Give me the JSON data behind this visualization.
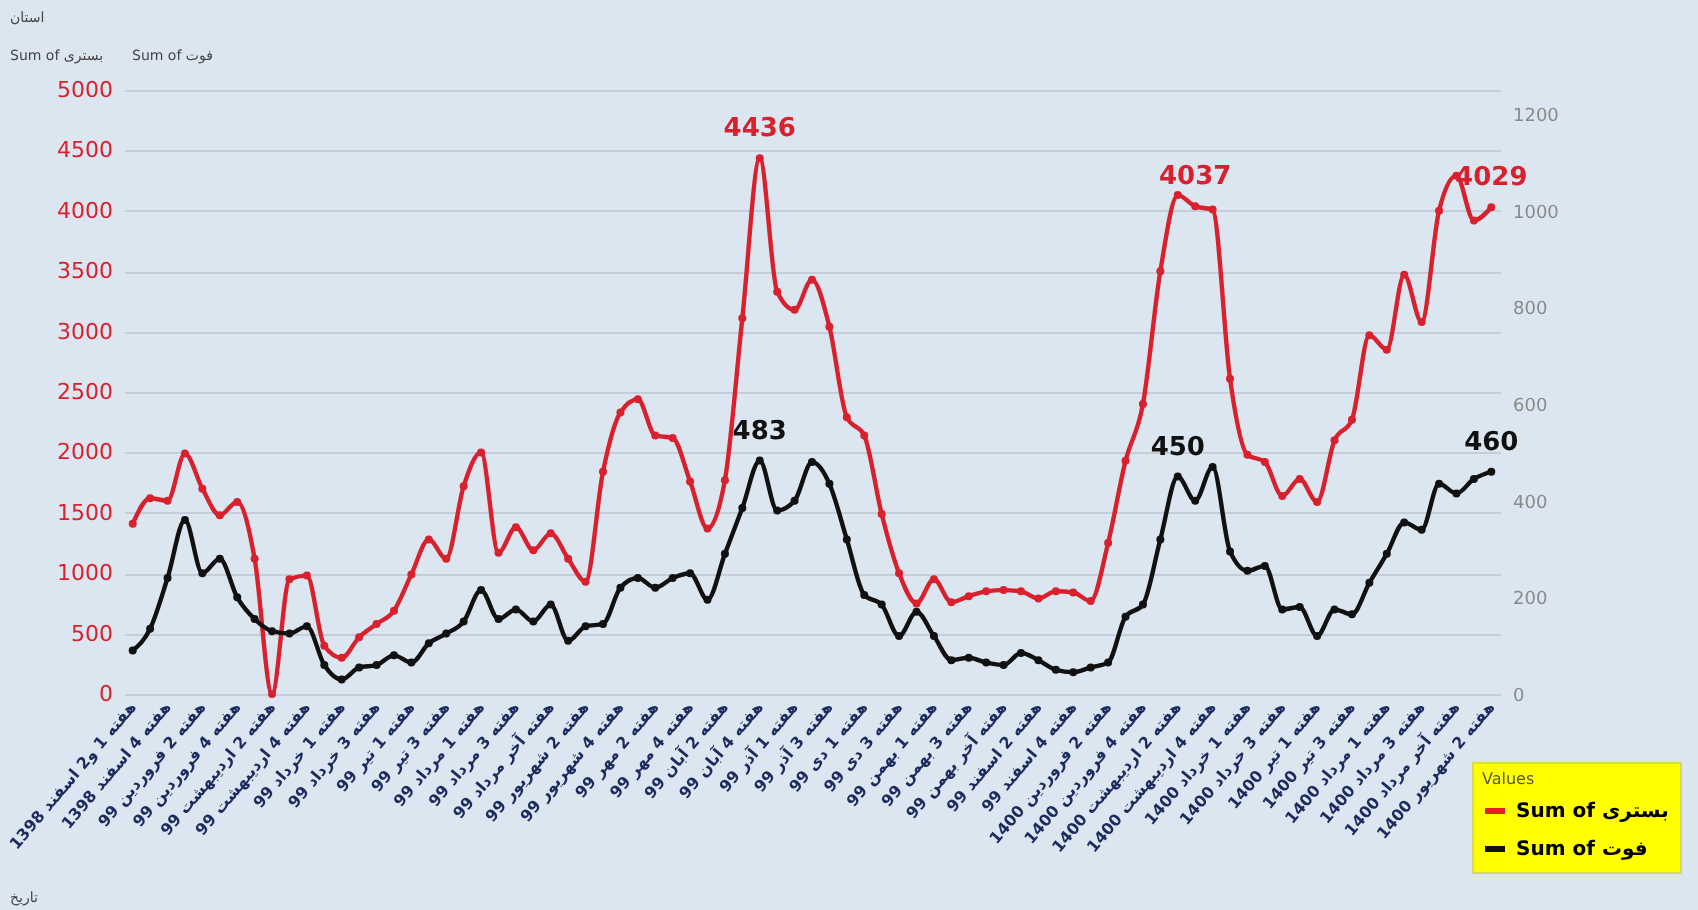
{
  "chart_data": {
    "type": "line",
    "categories": [
      "هفته 1 و2 اسفند 1398",
      null,
      "هفته 4 اسفند 1398",
      null,
      "هفته 2 فروردین 99",
      null,
      "هفته 4 فروردین 99",
      null,
      "هفته 2 اردیبهشت 99",
      null,
      "هفته 4 اردیبهشت 99",
      null,
      "هفته 1 خرداد 99",
      null,
      "هفته 3 خرداد 99",
      null,
      "هفته 1 تیر 99",
      null,
      "هفته 3 تیر 99",
      null,
      "هفته 1 مرداد 99",
      null,
      "هفته 3 مرداد 99",
      null,
      "هفته آخر مرداد 99",
      null,
      "هفته 2 شهریور 99",
      null,
      "هفته 4 شهریور 99",
      null,
      "هفته 2 مهر 99",
      null,
      "هفته 4 مهر 99",
      null,
      "هفته 2 آبان 99",
      null,
      "هفته 4 آبان 99",
      null,
      "هفته 1 آذر 99",
      null,
      "هفته 3 آذر 99",
      null,
      "هفته 1 دی 99",
      null,
      "هفته 3 دی 99",
      null,
      "هفته 1 بهمن 99",
      null,
      "هفته 3 بهمن 99",
      null,
      "هفته آخر بهمن 99",
      null,
      "هفته 2 اسفند 99",
      null,
      "هفته 4 اسفند 99",
      null,
      "هفته 2 فروردین 1400",
      null,
      "هفته 4 فروردین 1400",
      null,
      "هفته 2 اردیبهشت 1400",
      null,
      "هفته 4 اردیبهشت 1400",
      null,
      "هفته 1 خرداد 1400",
      null,
      "هفته 3 خرداد 1400",
      null,
      "هفته 1 تیر 1400",
      null,
      "هفته 3 تیر 1400",
      null,
      "هفته 1 مرداد 1400",
      null,
      "هفته 3 مرداد 1400",
      null,
      "هفته آخر مرداد 1400",
      null,
      "هفته 2 شهریور 1400"
    ],
    "series": [
      {
        "name": "Sum of بستری",
        "color": "#d9212e",
        "values": [
          1410,
          1620,
          1600,
          1990,
          1700,
          1480,
          1590,
          1120,
          0,
          950,
          980,
          400,
          300,
          470,
          580,
          690,
          990,
          1280,
          1120,
          1720,
          2000,
          1170,
          1380,
          1190,
          1330,
          1120,
          930,
          1840,
          2330,
          2440,
          2140,
          2120,
          1760,
          1370,
          1770,
          3110,
          4436,
          3330,
          3180,
          3430,
          3040,
          2290,
          2140,
          1490,
          1000,
          750,
          950,
          760,
          810,
          850,
          860,
          850,
          790,
          850,
          840,
          770,
          1250,
          1930,
          2400,
          3500,
          4130,
          4037,
          4010,
          2610,
          1980,
          1920,
          1640,
          1780,
          1590,
          2100,
          2270,
          2970,
          2850,
          3470,
          3080,
          4000,
          4290,
          3920,
          4029
        ],
        "value_labels": [
          null,
          null,
          null,
          null,
          null,
          null,
          null,
          null,
          null,
          null,
          null,
          null,
          null,
          null,
          null,
          null,
          null,
          null,
          null,
          null,
          null,
          null,
          null,
          null,
          null,
          null,
          null,
          null,
          null,
          null,
          null,
          null,
          null,
          null,
          null,
          null,
          "4436",
          null,
          null,
          null,
          null,
          null,
          null,
          null,
          null,
          null,
          null,
          null,
          null,
          null,
          null,
          null,
          null,
          null,
          null,
          null,
          null,
          null,
          null,
          null,
          null,
          "4037",
          null,
          null,
          null,
          null,
          null,
          null,
          null,
          null,
          null,
          null,
          null,
          null,
          null,
          null,
          null,
          null,
          "4029"
        ]
      },
      {
        "name": "Sum of فوت",
        "color": "#111111",
        "axis": "y2",
        "values": [
          90,
          135,
          240,
          360,
          250,
          280,
          200,
          155,
          130,
          125,
          140,
          60,
          30,
          55,
          60,
          80,
          65,
          105,
          125,
          150,
          215,
          155,
          175,
          150,
          185,
          110,
          140,
          145,
          220,
          240,
          220,
          240,
          250,
          195,
          290,
          385,
          483,
          380,
          400,
          480,
          435,
          320,
          205,
          185,
          120,
          170,
          120,
          70,
          75,
          65,
          60,
          85,
          70,
          50,
          45,
          55,
          65,
          160,
          185,
          320,
          450,
          400,
          470,
          295,
          255,
          265,
          175,
          180,
          120,
          175,
          165,
          230,
          290,
          355,
          340,
          435,
          415,
          445,
          460
        ],
        "value_labels": [
          null,
          null,
          null,
          null,
          null,
          null,
          null,
          null,
          null,
          null,
          null,
          null,
          null,
          null,
          null,
          null,
          null,
          null,
          null,
          null,
          null,
          null,
          null,
          null,
          null,
          null,
          null,
          null,
          null,
          null,
          null,
          null,
          null,
          null,
          null,
          null,
          "483",
          null,
          null,
          null,
          null,
          null,
          null,
          null,
          null,
          null,
          null,
          null,
          null,
          null,
          null,
          null,
          null,
          null,
          null,
          null,
          null,
          null,
          null,
          null,
          "450",
          null,
          null,
          null,
          null,
          null,
          null,
          null,
          null,
          null,
          null,
          null,
          null,
          null,
          null,
          null,
          null,
          null,
          "460"
        ]
      }
    ],
    "ylim": [
      0,
      5000
    ],
    "yticks": [
      0,
      500,
      1000,
      1500,
      2000,
      2500,
      3000,
      3500,
      4000,
      4500,
      5000
    ],
    "y2lim": [
      0,
      1250
    ],
    "y2ticks": [
      0,
      200,
      400,
      600,
      800,
      1000,
      1200
    ],
    "grid": "y",
    "legend": "bottom right",
    "legend_title": "Values",
    "marker": "circle",
    "annotations": [
      "استان",
      "Sum of بستری",
      "Sum of فوت",
      "تاریخ"
    ]
  }
}
